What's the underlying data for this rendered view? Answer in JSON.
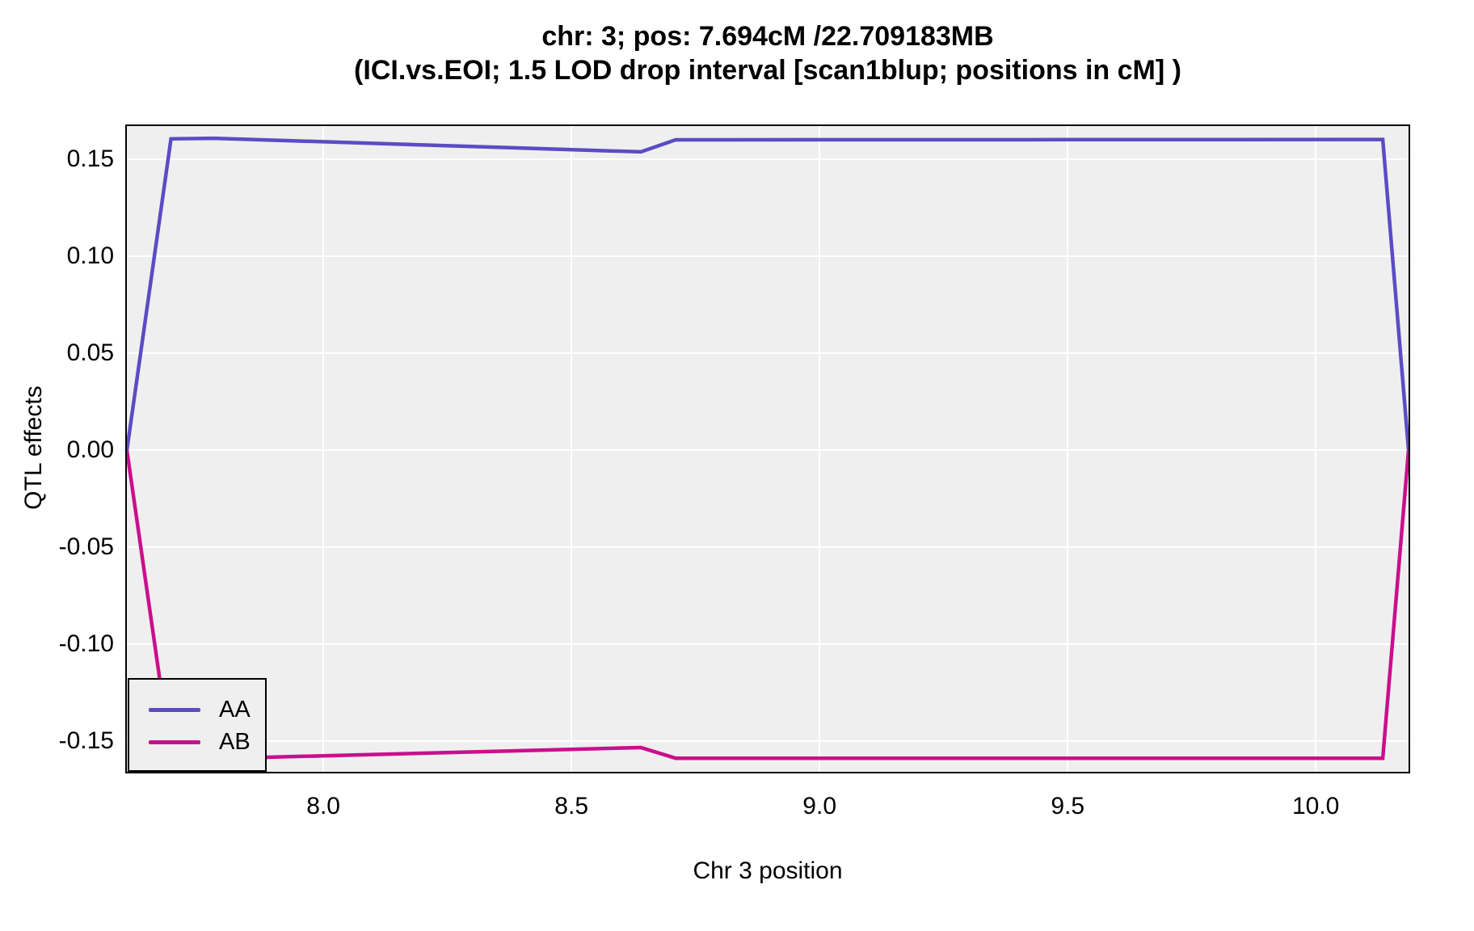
{
  "chart_data": {
    "type": "line",
    "title": "chr: 3; pos: 7.694cM /22.709183MB",
    "subtitle": "(ICI.vs.EOI; 1.5 LOD drop interval [scan1blup; positions in cM] )",
    "xlabel": "Chr 3 position",
    "ylabel": "QTL effects",
    "xlim": [
      7.604,
      10.187
    ],
    "ylim": [
      -0.1658,
      0.1671
    ],
    "x_ticks": [
      8.0,
      8.5,
      9.0,
      9.5,
      10.0
    ],
    "x_tick_labels": [
      "8.0",
      "8.5",
      "9.0",
      "9.5",
      "10.0"
    ],
    "y_ticks": [
      0.15,
      0.1,
      0.05,
      0.0,
      -0.05,
      -0.1,
      -0.15
    ],
    "y_tick_labels": [
      "0.15",
      "0.10",
      "0.05",
      "0.00",
      "-0.05",
      "-0.10",
      "-0.15"
    ],
    "grid": true,
    "grid_color": "#FFFFFF",
    "plot_bg": "#EFEFEF",
    "border_color": "#000000",
    "legend_position": "bottom-left",
    "series": [
      {
        "name": "AA",
        "color": "#5B4CC4",
        "points": [
          [
            7.604,
            0.0
          ],
          [
            7.693,
            0.1605
          ],
          [
            7.78,
            0.1608
          ],
          [
            8.64,
            0.1538
          ],
          [
            8.71,
            0.16
          ],
          [
            9.5,
            0.1601
          ],
          [
            10.135,
            0.1602
          ],
          [
            10.187,
            0.0
          ]
        ]
      },
      {
        "name": "AB",
        "color": "#CA0F8C",
        "points": [
          [
            7.604,
            0.0
          ],
          [
            7.693,
            -0.1585
          ],
          [
            7.78,
            -0.159
          ],
          [
            8.64,
            -0.1533
          ],
          [
            8.71,
            -0.1588
          ],
          [
            9.5,
            -0.1588
          ],
          [
            10.135,
            -0.1588
          ],
          [
            10.187,
            0.0
          ]
        ]
      }
    ]
  }
}
